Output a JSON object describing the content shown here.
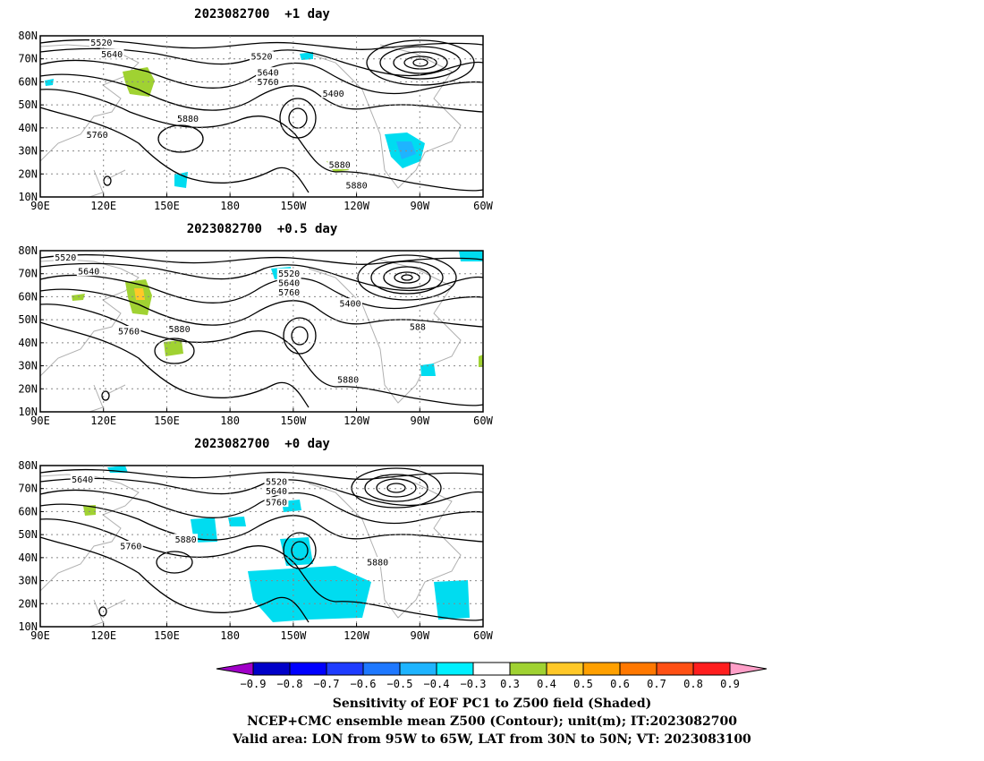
{
  "chart_data": [
    {
      "type": "heatmap",
      "title": "2023082700  +1 day",
      "lon_range": [
        "90E",
        "60W"
      ],
      "lat_range": [
        10,
        80
      ],
      "x_ticks": [
        "90E",
        "120E",
        "150E",
        "180",
        "150W",
        "120W",
        "90W",
        "60W"
      ],
      "y_ticks": [
        "10N",
        "20N",
        "30N",
        "40N",
        "50N",
        "60N",
        "70N",
        "80N"
      ],
      "contour_labels": [
        {
          "text": "5520",
          "lon": 119,
          "lat": 77
        },
        {
          "text": "5640",
          "lon": 124,
          "lat": 72
        },
        {
          "text": "5520",
          "lon": 195,
          "lat": 71
        },
        {
          "text": "5640",
          "lon": 198,
          "lat": 64
        },
        {
          "text": "5760",
          "lon": 198,
          "lat": 60
        },
        {
          "text": "5400",
          "lon": 229,
          "lat": 55
        },
        {
          "text": "5880",
          "lon": 160,
          "lat": 44
        },
        {
          "text": "5760",
          "lon": 117,
          "lat": 37
        },
        {
          "text": "5880",
          "lon": 232,
          "lat": 24
        },
        {
          "text": "5880",
          "lon": 240,
          "lat": 15
        }
      ]
    },
    {
      "type": "heatmap",
      "title": "2023082700  +0.5 day",
      "lon_range": [
        "90E",
        "60W"
      ],
      "lat_range": [
        10,
        80
      ],
      "x_ticks": [
        "90E",
        "120E",
        "150E",
        "180",
        "150W",
        "120W",
        "90W",
        "60W"
      ],
      "y_ticks": [
        "10N",
        "20N",
        "30N",
        "40N",
        "50N",
        "60N",
        "70N",
        "80N"
      ],
      "contour_labels": [
        {
          "text": "5520",
          "lon": 102,
          "lat": 77
        },
        {
          "text": "5640",
          "lon": 113,
          "lat": 71
        },
        {
          "text": "5520",
          "lon": 208,
          "lat": 70
        },
        {
          "text": "5640",
          "lon": 208,
          "lat": 66
        },
        {
          "text": "5760",
          "lon": 208,
          "lat": 62
        },
        {
          "text": "5400",
          "lon": 237,
          "lat": 57
        },
        {
          "text": "5880",
          "lon": 156,
          "lat": 46
        },
        {
          "text": "5760",
          "lon": 132,
          "lat": 45
        },
        {
          "text": "588",
          "lon": 269,
          "lat": 47
        },
        {
          "text": "5880",
          "lon": 236,
          "lat": 24
        }
      ]
    },
    {
      "type": "heatmap",
      "title": "2023082700  +0 day",
      "lon_range": [
        "90E",
        "60W"
      ],
      "lat_range": [
        10,
        80
      ],
      "x_ticks": [
        "90E",
        "120E",
        "150E",
        "180",
        "150W",
        "120W",
        "90W",
        "60W"
      ],
      "y_ticks": [
        "10N",
        "20N",
        "30N",
        "40N",
        "50N",
        "60N",
        "70N",
        "80N"
      ],
      "contour_labels": [
        {
          "text": "5640",
          "lon": 110,
          "lat": 74
        },
        {
          "text": "5520",
          "lon": 202,
          "lat": 73
        },
        {
          "text": "5640",
          "lon": 202,
          "lat": 69
        },
        {
          "text": "5760",
          "lon": 202,
          "lat": 64
        },
        {
          "text": "5880",
          "lon": 159,
          "lat": 48
        },
        {
          "text": "5760",
          "lon": 133,
          "lat": 45
        },
        {
          "text": "5880",
          "lon": 250,
          "lat": 38
        }
      ]
    }
  ],
  "colorbar": {
    "labels": [
      "−0.9",
      "−0.8",
      "−0.7",
      "−0.6",
      "−0.5",
      "−0.4",
      "−0.3",
      "0.3",
      "0.4",
      "0.5",
      "0.6",
      "0.7",
      "0.8",
      "0.9"
    ],
    "colors": [
      "#a000c8",
      "#0000c8",
      "#0000ff",
      "#1e3cff",
      "#1e78ff",
      "#1eb4ff",
      "#00dcf0",
      "#00f0ff",
      "#ffffff",
      "#a0d232",
      "#ffc828",
      "#ffa000",
      "#ff7800",
      "#ff5014",
      "#ff1e1e",
      "#ff0000",
      "#ff9fc8"
    ]
  },
  "captions": {
    "line1": "Sensitivity of EOF PC1 to Z500 field (Shaded)",
    "line2": "NCEP+CMC ensemble mean Z500 (Contour); unit(m); IT:2023082700",
    "line3": "Valid area: LON from 95W to 65W, LAT from 30N to 50N; VT: 2023083100"
  }
}
